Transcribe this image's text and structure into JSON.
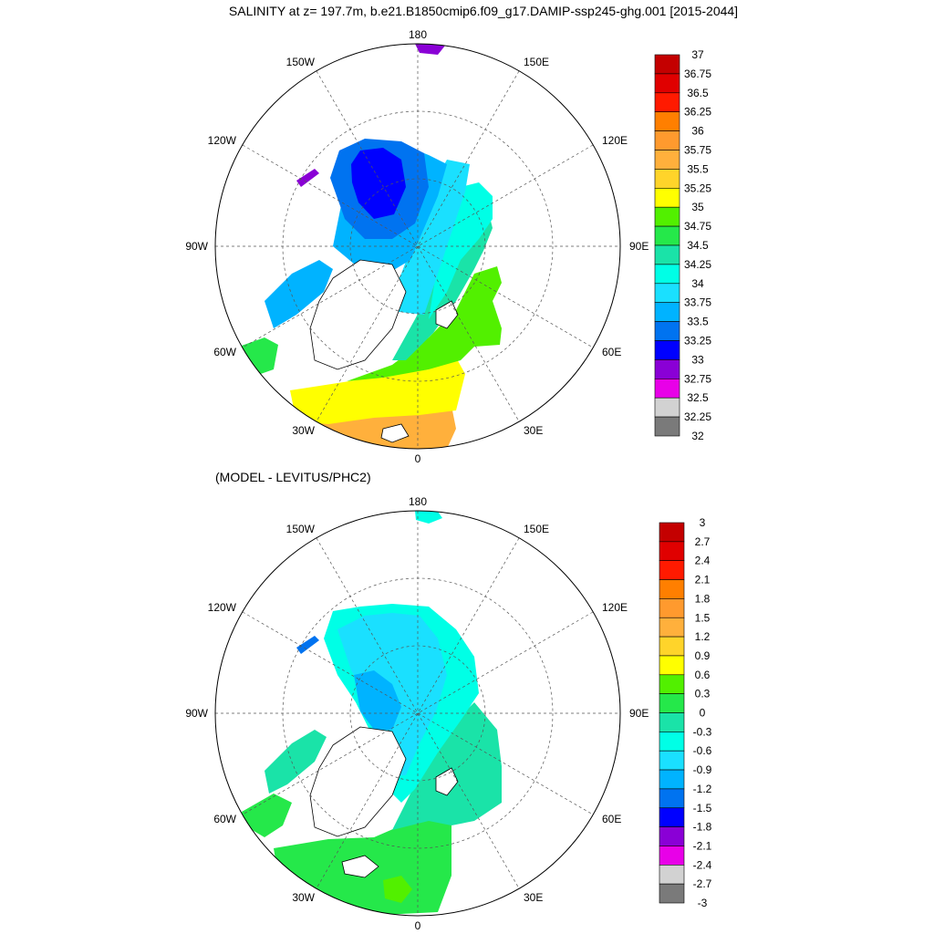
{
  "title": "SALINITY at z= 197.7m, b.e21.B1850cmip6.f09_g17.DAMIP-ssp245-ghg.001 [2015-2044]",
  "bottom_title": "(MODEL - LEVITUS/PHC2)",
  "longitude_labels": {
    "top": "180",
    "bottom": "0",
    "left": "90W",
    "right": "90E",
    "upper_left_outer": "150W",
    "upper_left_inner": "120W",
    "lower_left_inner": "60W",
    "lower_left_outer": "30W",
    "upper_right_outer": "150E",
    "upper_right_inner": "120E",
    "lower_right_inner": "60E",
    "lower_right_outer": "30E"
  },
  "top_panel": {
    "colorbar_labels": [
      "37",
      "36.75",
      "36.5",
      "36.25",
      "36",
      "35.75",
      "35.5",
      "35.25",
      "35",
      "34.75",
      "34.5",
      "34.25",
      "34",
      "33.75",
      "33.5",
      "33.25",
      "33",
      "32.75",
      "32.5",
      "32.25",
      "32"
    ],
    "colors": [
      "#c40000",
      "#e00000",
      "#ff1a00",
      "#ff7f00",
      "#ff9a2e",
      "#ffb03c",
      "#ffd42a",
      "#ffff00",
      "#52f000",
      "#25e84a",
      "#1ae3a8",
      "#00ffe6",
      "#1ae0ff",
      "#00b3ff",
      "#0073f0",
      "#0000ff",
      "#8a00d6",
      "#e800e8",
      "#d2d2d2",
      "#7a7a7a"
    ]
  },
  "bottom_panel": {
    "colorbar_labels": [
      "3",
      "2.7",
      "2.4",
      "2.1",
      "1.8",
      "1.5",
      "1.2",
      "0.9",
      "0.6",
      "0.3",
      "0",
      "-0.3",
      "-0.6",
      "-0.9",
      "-1.2",
      "-1.5",
      "-1.8",
      "-2.1",
      "-2.4",
      "-2.7",
      "-3"
    ],
    "colors": [
      "#c40000",
      "#e00000",
      "#ff1a00",
      "#ff7f00",
      "#ff9a2e",
      "#ffb03c",
      "#ffd42a",
      "#ffff00",
      "#52f000",
      "#25e84a",
      "#1ae3a8",
      "#00ffe6",
      "#1ae0ff",
      "#00b3ff",
      "#0073f0",
      "#0000ff",
      "#8a00d6",
      "#e800e8",
      "#d2d2d2",
      "#7a7a7a"
    ]
  }
}
